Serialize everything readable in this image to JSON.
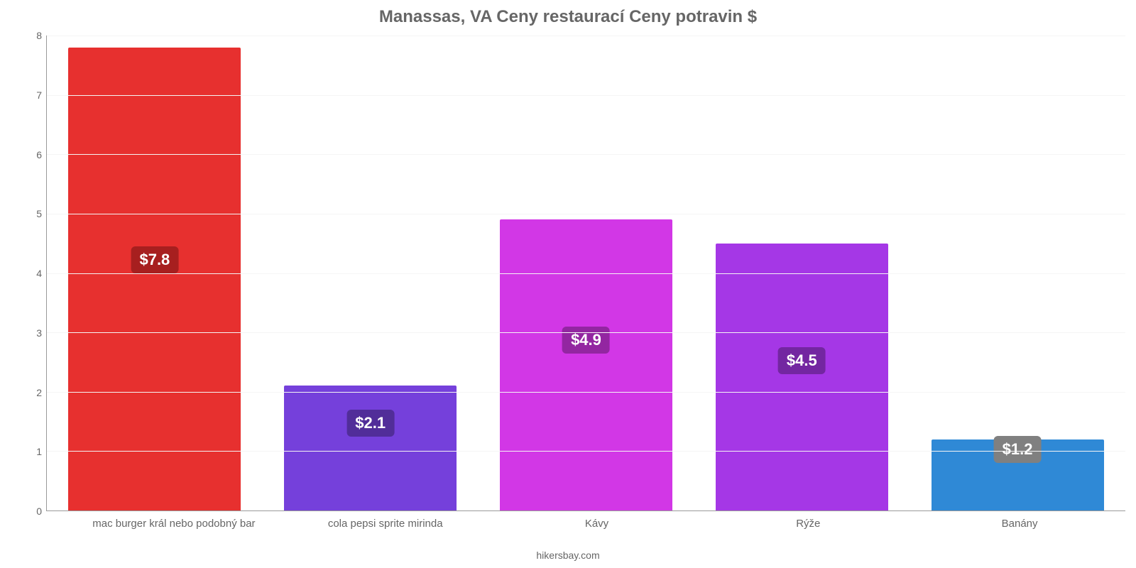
{
  "chart": {
    "type": "bar",
    "title": "Manassas, VA Ceny restaurací Ceny potravin $",
    "title_fontsize": 24,
    "title_color": "#666666",
    "credit": "hikersbay.com",
    "credit_color": "#666666",
    "background_color": "#ffffff",
    "grid_color": "#f5f5f5",
    "axis_line_color": "#999999",
    "axis_label_color": "#666666",
    "axis_label_fontsize": 14,
    "ylim": [
      0,
      8
    ],
    "ytick_step": 1,
    "yticks": [
      0,
      1,
      2,
      3,
      4,
      5,
      6,
      7,
      8
    ],
    "bar_width_pct": 80,
    "value_badge_fontsize": 22,
    "value_badge_text_color": "#ffffff",
    "value_badge_radius": 6,
    "bars": [
      {
        "category": "mac burger král nebo podobný bar",
        "value": 7.8,
        "display_value": "$7.8",
        "bar_color": "#e7302f",
        "badge_color": "#a71f1f",
        "badge_center_y": 4.2
      },
      {
        "category": "cola pepsi sprite mirinda",
        "value": 2.1,
        "display_value": "$2.1",
        "bar_color": "#7540db",
        "badge_color": "#512d99",
        "badge_center_y": 1.45
      },
      {
        "category": "Kávy",
        "value": 4.9,
        "display_value": "$4.9",
        "bar_color": "#d237e6",
        "badge_color": "#9326a1",
        "badge_center_y": 2.85
      },
      {
        "category": "Rýže",
        "value": 4.5,
        "display_value": "$4.5",
        "bar_color": "#a537e6",
        "badge_color": "#7326a1",
        "badge_center_y": 2.5
      },
      {
        "category": "Banány",
        "value": 1.2,
        "display_value": "$1.2",
        "bar_color": "#2f89d6",
        "badge_color": "#808080",
        "badge_center_y": 1.0
      }
    ]
  }
}
